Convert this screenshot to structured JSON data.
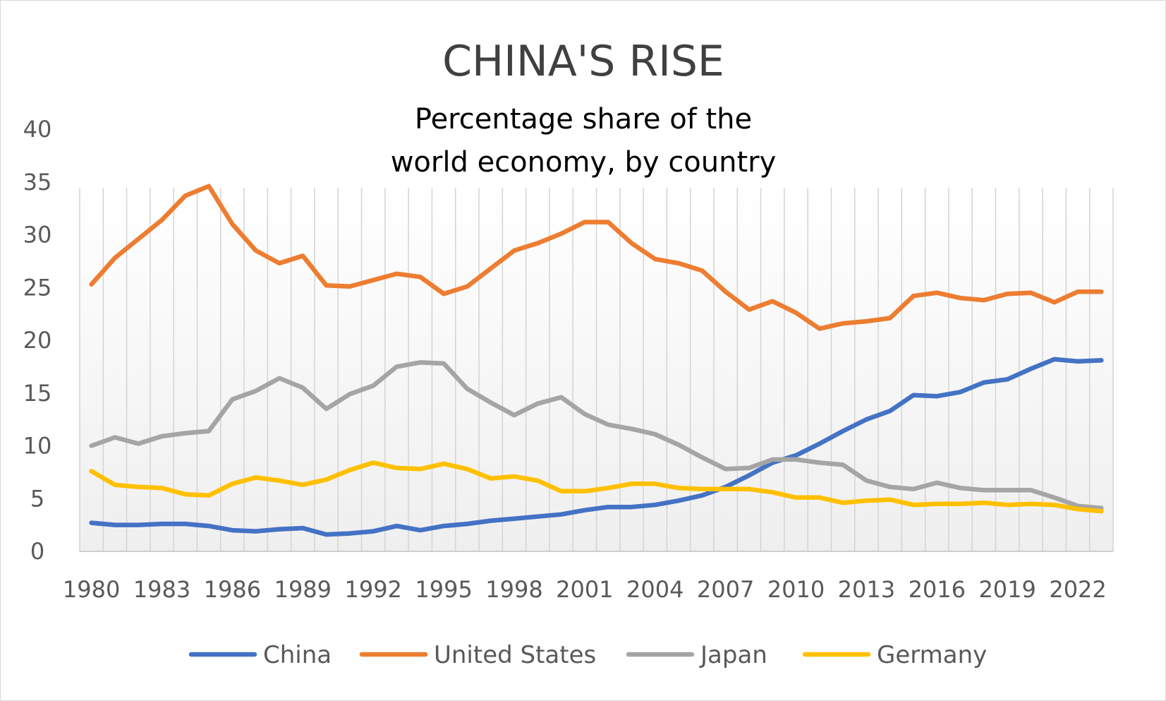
{
  "chart_data": {
    "type": "line",
    "title": "CHINA'S RISE",
    "subtitle_lines": [
      "Percentage share of the",
      "world economy, by country"
    ],
    "x": [
      1980,
      1981,
      1982,
      1983,
      1984,
      1985,
      1986,
      1987,
      1988,
      1989,
      1990,
      1991,
      1992,
      1993,
      1994,
      1995,
      1996,
      1997,
      1998,
      1999,
      2000,
      2001,
      2002,
      2003,
      2004,
      2005,
      2006,
      2007,
      2008,
      2009,
      2010,
      2011,
      2012,
      2013,
      2014,
      2015,
      2016,
      2017,
      2018,
      2019,
      2020,
      2021,
      2022,
      2023
    ],
    "x_tick_labels": [
      "1980",
      "1983",
      "1986",
      "1989",
      "1992",
      "1995",
      "1998",
      "2001",
      "2004",
      "2007",
      "2010",
      "2013",
      "2016",
      "2019",
      "2022"
    ],
    "ylim": [
      0,
      40
    ],
    "y_ticks": [
      0,
      5,
      10,
      15,
      20,
      25,
      30,
      35,
      40
    ],
    "vertical_gridlines": true,
    "legend_position": "bottom",
    "series": [
      {
        "name": "China",
        "color": "#4472C4",
        "values": [
          2.7,
          2.5,
          2.5,
          2.6,
          2.6,
          2.4,
          2.0,
          1.9,
          2.1,
          2.2,
          1.6,
          1.7,
          1.9,
          2.4,
          2.0,
          2.4,
          2.6,
          2.9,
          3.1,
          3.3,
          3.5,
          3.9,
          4.2,
          4.2,
          4.4,
          4.8,
          5.3,
          6.1,
          7.2,
          8.4,
          9.1,
          10.2,
          11.4,
          12.5,
          13.3,
          14.8,
          14.7,
          15.1,
          16.0,
          16.3,
          17.3,
          18.2,
          18.0,
          18.1
        ]
      },
      {
        "name": "United States",
        "color": "#ED7D31",
        "values": [
          25.3,
          27.8,
          29.6,
          31.4,
          33.7,
          34.6,
          31.0,
          28.5,
          27.3,
          28.0,
          25.2,
          25.1,
          25.7,
          26.3,
          26.0,
          24.4,
          25.1,
          26.8,
          28.5,
          29.2,
          30.1,
          31.2,
          31.2,
          29.2,
          27.7,
          27.3,
          26.6,
          24.6,
          22.9,
          23.7,
          22.6,
          21.1,
          21.6,
          21.8,
          22.1,
          24.2,
          24.5,
          24.0,
          23.8,
          24.4,
          24.5,
          23.6,
          24.6,
          24.6
        ]
      },
      {
        "name": "Japan",
        "color": "#A5A5A5",
        "values": [
          10.0,
          10.8,
          10.2,
          10.9,
          11.2,
          11.4,
          14.4,
          15.2,
          16.4,
          15.5,
          13.5,
          14.9,
          15.7,
          17.5,
          17.9,
          17.8,
          15.4,
          14.1,
          12.9,
          14.0,
          14.6,
          13.0,
          12.0,
          11.6,
          11.1,
          10.1,
          8.9,
          7.8,
          7.9,
          8.7,
          8.7,
          8.4,
          8.2,
          6.7,
          6.1,
          5.9,
          6.5,
          6.0,
          5.8,
          5.8,
          5.8,
          5.1,
          4.3,
          4.1
        ]
      },
      {
        "name": "Germany",
        "color": "#FFC000",
        "values": [
          7.6,
          6.3,
          6.1,
          6.0,
          5.4,
          5.3,
          6.4,
          7.0,
          6.7,
          6.3,
          6.8,
          7.7,
          8.4,
          7.9,
          7.8,
          8.3,
          7.8,
          6.9,
          7.1,
          6.7,
          5.7,
          5.7,
          6.0,
          6.4,
          6.4,
          6.0,
          5.9,
          5.9,
          5.9,
          5.6,
          5.1,
          5.1,
          4.6,
          4.8,
          4.9,
          4.4,
          4.5,
          4.5,
          4.6,
          4.4,
          4.5,
          4.4,
          4.0,
          3.8
        ]
      }
    ]
  }
}
